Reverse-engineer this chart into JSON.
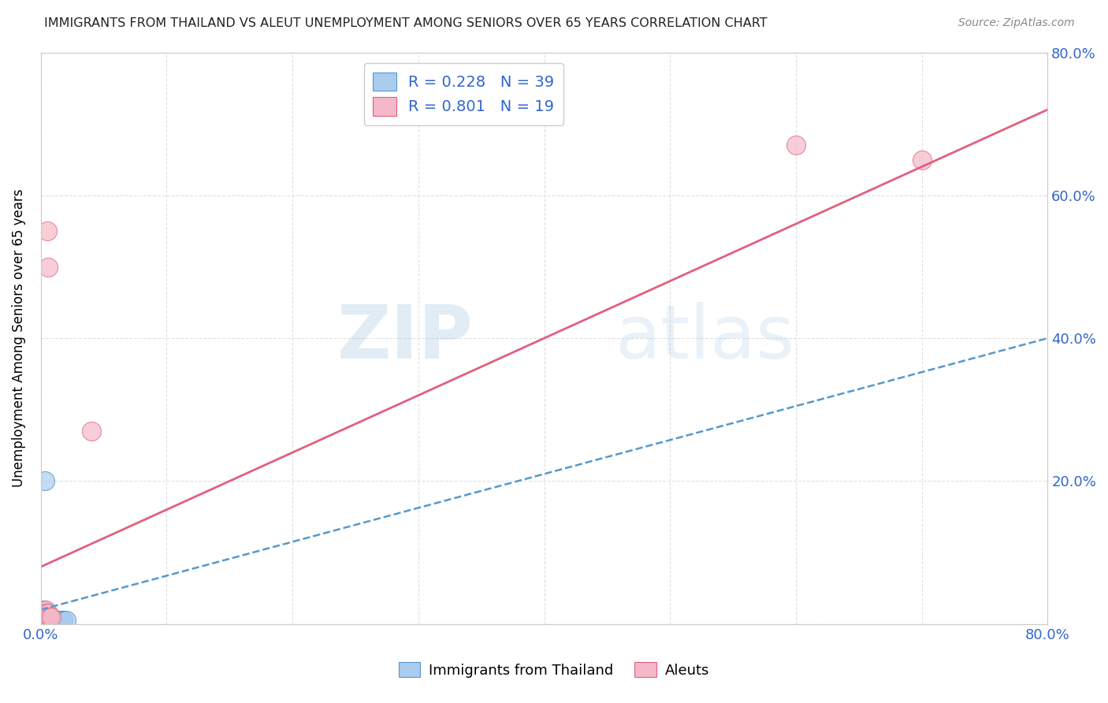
{
  "title": "IMMIGRANTS FROM THAILAND VS ALEUT UNEMPLOYMENT AMONG SENIORS OVER 65 YEARS CORRELATION CHART",
  "source": "Source: ZipAtlas.com",
  "ylabel": "Unemployment Among Seniors over 65 years",
  "legend_label1": "Immigrants from Thailand",
  "legend_label2": "Aleuts",
  "R1": 0.228,
  "N1": 39,
  "R2": 0.801,
  "N2": 19,
  "color_blue_fill": "#aaccee",
  "color_blue_edge": "#4488cc",
  "color_pink_fill": "#f4b8c8",
  "color_pink_edge": "#e06080",
  "color_blue_trend": "#5599cc",
  "color_pink_trend": "#e06080",
  "xlim": [
    0.0,
    0.8
  ],
  "ylim": [
    0.0,
    0.8
  ],
  "blue_points_x": [
    0.0005,
    0.001,
    0.001,
    0.001,
    0.0015,
    0.002,
    0.002,
    0.002,
    0.002,
    0.003,
    0.003,
    0.003,
    0.003,
    0.0035,
    0.004,
    0.004,
    0.004,
    0.005,
    0.005,
    0.005,
    0.005,
    0.006,
    0.006,
    0.006,
    0.007,
    0.007,
    0.008,
    0.009,
    0.01,
    0.01,
    0.011,
    0.012,
    0.013,
    0.014,
    0.016,
    0.016,
    0.018,
    0.003,
    0.02
  ],
  "blue_points_y": [
    0.005,
    0.005,
    0.005,
    0.01,
    0.01,
    0.005,
    0.005,
    0.005,
    0.02,
    0.005,
    0.005,
    0.005,
    0.015,
    0.01,
    0.005,
    0.005,
    0.01,
    0.005,
    0.005,
    0.005,
    0.01,
    0.005,
    0.005,
    0.01,
    0.005,
    0.01,
    0.005,
    0.005,
    0.005,
    0.005,
    0.005,
    0.005,
    0.005,
    0.005,
    0.005,
    0.005,
    0.005,
    0.2,
    0.005
  ],
  "pink_points_x": [
    0.001,
    0.001,
    0.002,
    0.002,
    0.003,
    0.003,
    0.004,
    0.004,
    0.004,
    0.005,
    0.005,
    0.005,
    0.006,
    0.006,
    0.007,
    0.008,
    0.04,
    0.6,
    0.7
  ],
  "pink_points_y": [
    0.005,
    0.01,
    0.01,
    0.015,
    0.01,
    0.015,
    0.01,
    0.015,
    0.02,
    0.01,
    0.015,
    0.55,
    0.015,
    0.5,
    0.01,
    0.01,
    0.27,
    0.67,
    0.65
  ],
  "blue_trend_x": [
    0.0,
    0.8
  ],
  "blue_trend_y": [
    0.02,
    0.4
  ],
  "pink_trend_x": [
    0.0,
    0.8
  ],
  "pink_trend_y": [
    0.08,
    0.72
  ],
  "watermark_zip": "ZIP",
  "watermark_atlas": "atlas",
  "background_color": "#ffffff",
  "grid_color": "#dddddd",
  "title_color": "#222222",
  "source_color": "#888888",
  "tick_color": "#3366cc"
}
